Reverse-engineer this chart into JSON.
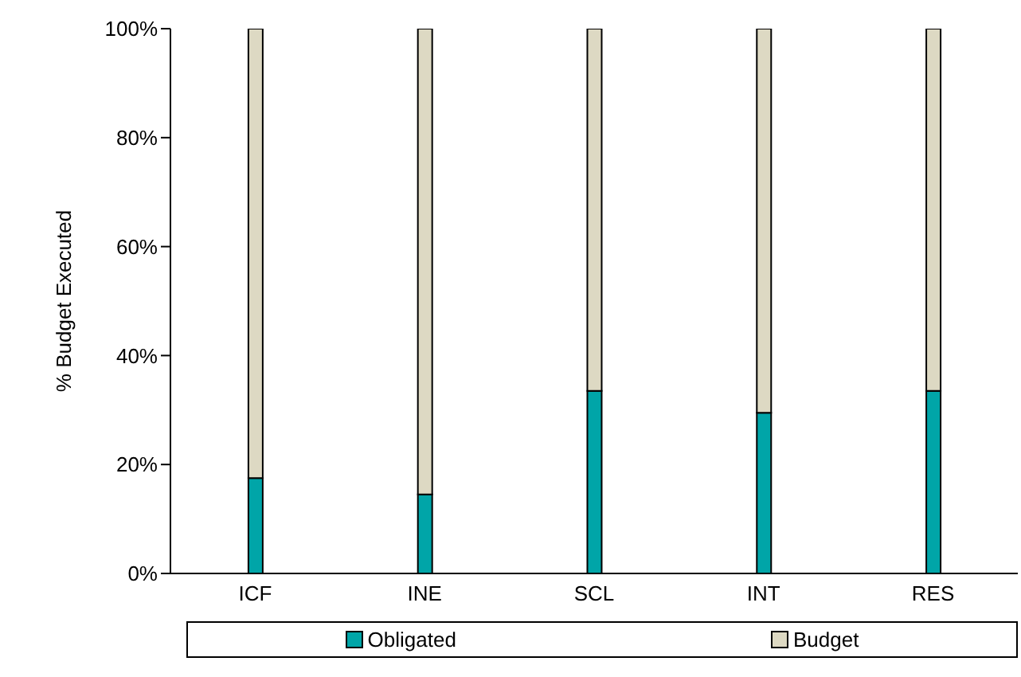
{
  "chart_data": {
    "type": "bar",
    "stacked": true,
    "ylabel": "% Budget Executed",
    "categories": [
      "ICF",
      "INE",
      "SCL",
      "INT",
      "RES"
    ],
    "series": [
      {
        "name": "Obligated",
        "color": "#00a5a8",
        "values": [
          17.5,
          14.5,
          33.5,
          29.5,
          33.5
        ]
      },
      {
        "name": "Budget",
        "color": "#ddd9c3",
        "values": [
          82.5,
          85.5,
          66.5,
          70.5,
          66.5
        ]
      }
    ],
    "ylim": [
      0,
      100
    ],
    "yticks": [
      {
        "value": 0,
        "label": "0%"
      },
      {
        "value": 20,
        "label": "20%"
      },
      {
        "value": 40,
        "label": "40%"
      },
      {
        "value": 60,
        "label": "60%"
      },
      {
        "value": 80,
        "label": "80%"
      },
      {
        "value": 100,
        "label": "100%"
      }
    ],
    "grid": false,
    "legend": "bottom"
  }
}
